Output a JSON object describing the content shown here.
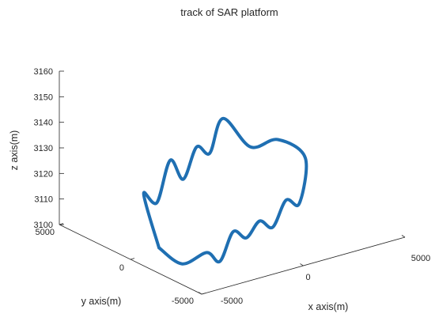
{
  "chart_data": {
    "type": "line",
    "title": "track of SAR platform",
    "xlabel": "x axis(m)",
    "ylabel": "y axis(m)",
    "zlabel": "z axis(m)",
    "xlim": [
      -5000,
      5000
    ],
    "ylim": [
      -5000,
      5000
    ],
    "zlim": [
      3100,
      3160
    ],
    "x_ticks": [
      "-5000",
      "0",
      "5000"
    ],
    "y_ticks": [
      "-5000",
      "0",
      "5000"
    ],
    "z_ticks": [
      "3100",
      "3110",
      "3120",
      "3130",
      "3140",
      "3150",
      "3160"
    ],
    "grid": false,
    "line_color": "#1f6fb2",
    "series": [
      {
        "x": [
          -5000,
          -4000,
          -3000,
          -2000,
          -1000,
          0,
          1000,
          2000,
          3000,
          4000,
          5000,
          4000,
          3000,
          2000,
          1000,
          0,
          -1000,
          -2000,
          -3000,
          -4000,
          -5000
        ],
        "y": [
          -2000,
          -2200,
          -2500,
          -2000,
          -1500,
          -1000,
          -500,
          0,
          500,
          1000,
          2000,
          2500,
          3000,
          3500,
          3000,
          2500,
          2000,
          1500,
          1000,
          500,
          -2000
        ],
        "z": [
          3110,
          3102,
          3105,
          3098,
          3106,
          3100,
          3103,
          3097,
          3104,
          3099,
          3112,
          3120,
          3118,
          3130,
          3120,
          3126,
          3117,
          3128,
          3115,
          3122,
          3110
        ]
      }
    ]
  }
}
